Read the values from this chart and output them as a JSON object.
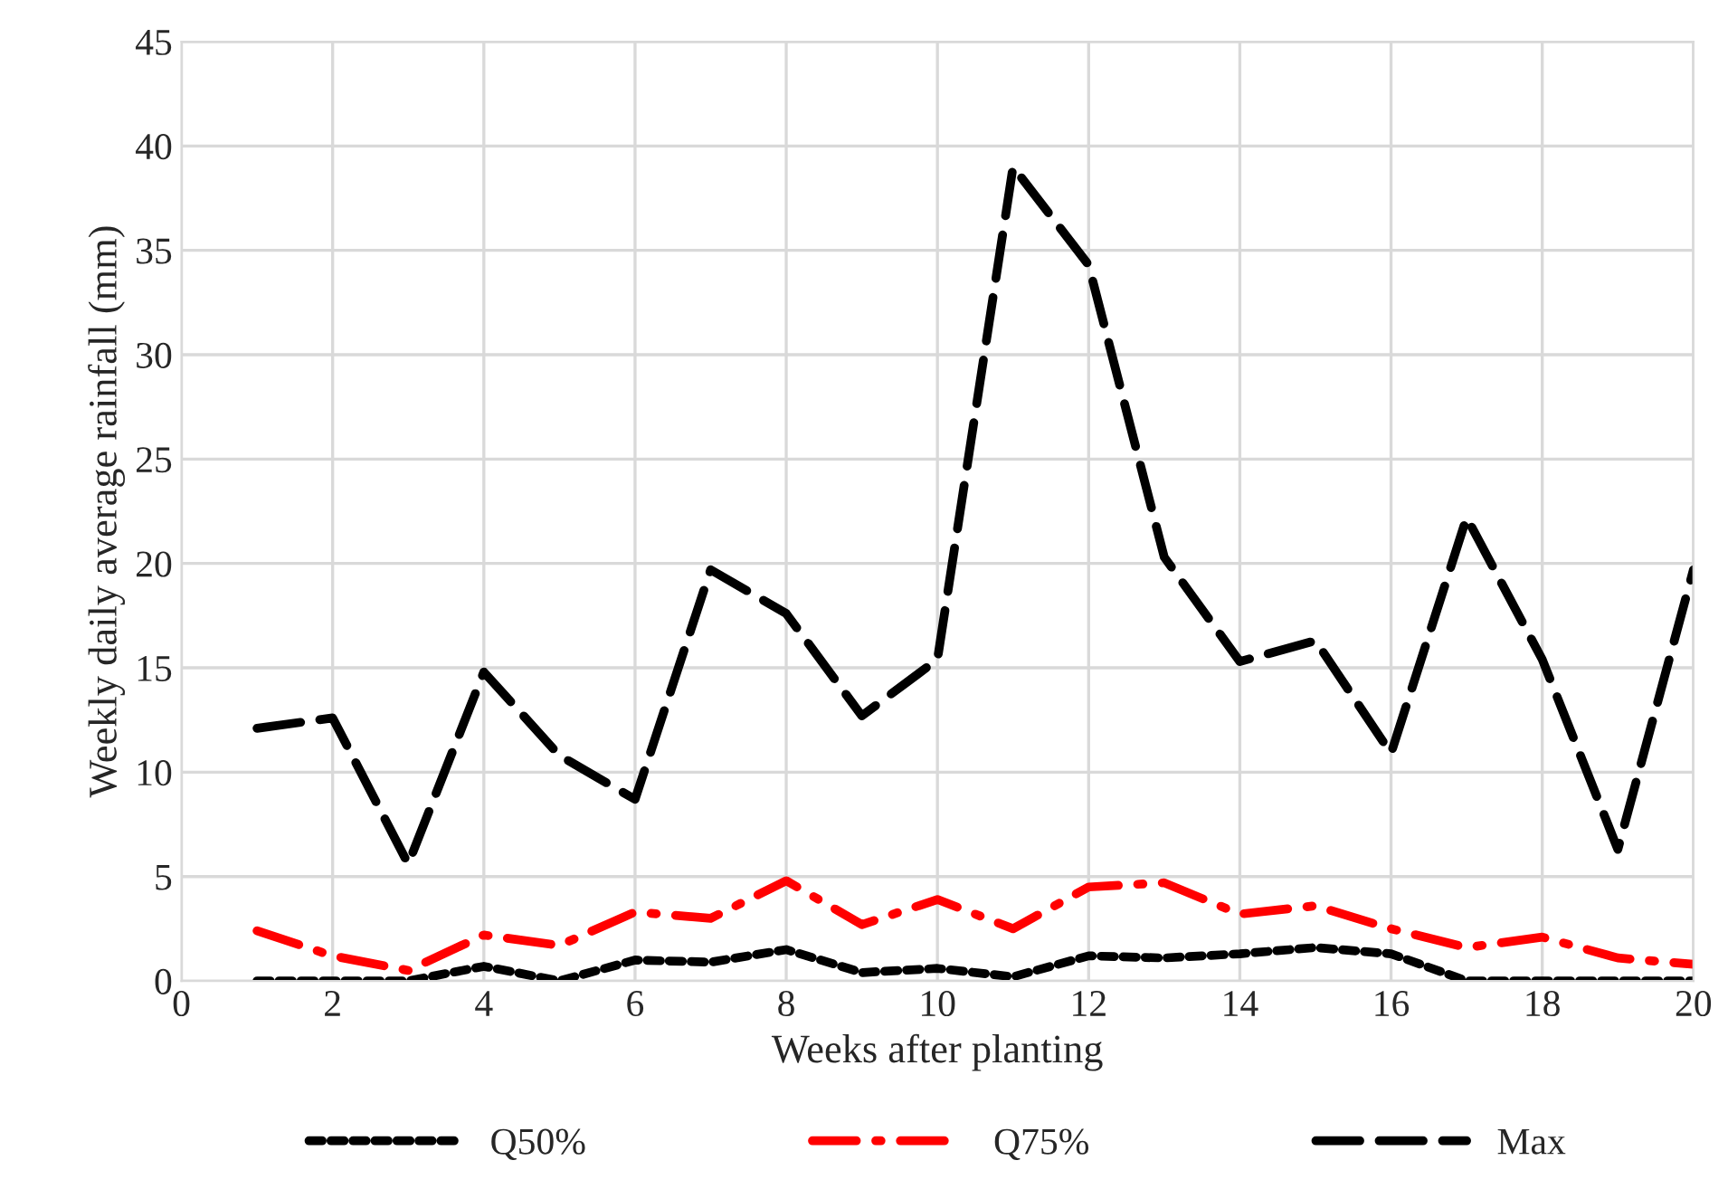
{
  "chart_data": {
    "type": "line",
    "xlabel": "Weeks after planting",
    "ylabel": "Weekly daily average rainfall (mm)",
    "x": [
      1,
      2,
      3,
      4,
      5,
      6,
      7,
      8,
      9,
      10,
      11,
      12,
      13,
      14,
      15,
      16,
      17,
      18,
      19,
      20
    ],
    "series": [
      {
        "name": "Q50%",
        "color": "#000000",
        "line_style": "dotted",
        "values": [
          0,
          0,
          0,
          0.7,
          0,
          1.0,
          0.9,
          1.5,
          0.4,
          0.6,
          0.2,
          1.2,
          1.1,
          1.3,
          1.6,
          1.3,
          0,
          0,
          0,
          0
        ]
      },
      {
        "name": "Q75%",
        "color": "#ff0000",
        "line_style": "dashdot",
        "values": [
          2.4,
          1.2,
          0.5,
          2.2,
          1.7,
          3.3,
          3.0,
          4.8,
          2.7,
          3.9,
          2.5,
          4.5,
          4.7,
          3.2,
          3.6,
          2.5,
          1.6,
          2.1,
          1.1,
          0.8
        ]
      },
      {
        "name": "Max",
        "color": "#000000",
        "line_style": "dashed",
        "values": [
          12.1,
          12.6,
          5.6,
          14.8,
          10.8,
          8.7,
          19.7,
          17.6,
          12.7,
          15.4,
          39.0,
          34.3,
          20.3,
          15.3,
          16.3,
          10.9,
          22.2,
          15.4,
          6.3,
          19.7
        ]
      }
    ],
    "xlim": [
      0,
      20
    ],
    "xticks": [
      0,
      2,
      4,
      6,
      8,
      10,
      12,
      14,
      16,
      18,
      20
    ],
    "ylim": [
      0,
      45
    ],
    "yticks": [
      0,
      5,
      10,
      15,
      20,
      25,
      30,
      35,
      40,
      45
    ],
    "grid": true,
    "legend": "bottom",
    "marker": "none"
  }
}
